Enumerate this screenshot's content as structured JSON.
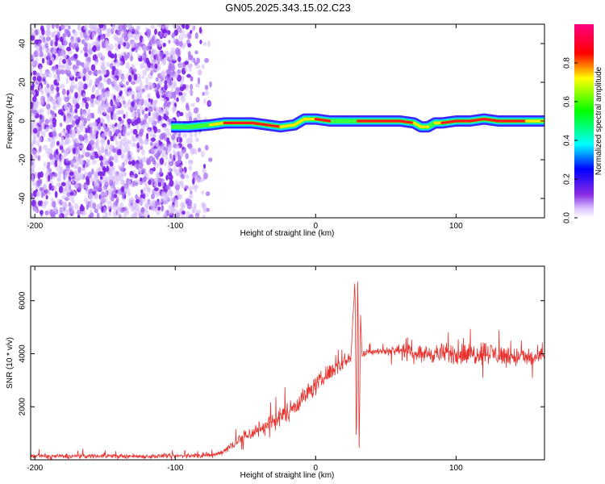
{
  "title": "GN05.2025.343.15.02.C23",
  "chart_data": [
    {
      "type": "heatmap",
      "xlabel": "Height of straight line (km)",
      "ylabel": "Frequency (Hz)",
      "xlim": [
        -203,
        163
      ],
      "ylim": [
        -50,
        50
      ],
      "x_ticks": [
        -200,
        -100,
        0,
        100
      ],
      "y_ticks": [
        -40,
        -20,
        0,
        20,
        40
      ],
      "colorbar": {
        "label": "Normalized spectral amplitude",
        "range": [
          0,
          1
        ],
        "ticks": [
          "0.0",
          "0.2",
          "0.4",
          "0.6",
          "0.8"
        ],
        "colors": [
          "#ffffff",
          "#c9a6ff",
          "#8a2be2",
          "#0000ff",
          "#00ffff",
          "#00ff00",
          "#ffff00",
          "#ff0000",
          "#ff0080"
        ]
      },
      "noise_region_x": [
        -203,
        -72
      ],
      "signal_track": {
        "x": [
          -103,
          -90,
          -75,
          -65,
          -55,
          -45,
          -35,
          -25,
          -15,
          -8,
          0,
          10,
          20,
          30,
          40,
          50,
          60,
          70,
          75,
          80,
          85,
          90,
          100,
          110,
          120,
          130,
          140,
          150,
          163
        ],
        "freq": [
          -3,
          -3,
          -2,
          -1,
          -1,
          -1,
          -2,
          -3,
          -2,
          1,
          1,
          0,
          0,
          0,
          0,
          0,
          0,
          -1,
          -3,
          -3,
          -1,
          -1,
          0,
          0,
          1,
          0,
          0,
          0,
          0
        ],
        "amplitude": [
          0.3,
          0.45,
          0.55,
          0.95,
          0.95,
          0.95,
          0.9,
          0.85,
          0.7,
          0.85,
          0.8,
          0.9,
          0.5,
          0.85,
          0.95,
          0.95,
          0.95,
          0.8,
          0.7,
          0.8,
          0.6,
          0.95,
          0.85,
          0.9,
          0.8,
          0.9,
          0.95,
          0.9,
          0.7
        ]
      }
    },
    {
      "type": "line",
      "xlabel": "Height of straight line (km)",
      "ylabel": "SNR (10 * v/v)",
      "xlim": [
        -203,
        163
      ],
      "ylim": [
        0,
        7300
      ],
      "x_ticks": [
        -200,
        -100,
        0,
        100
      ],
      "y_ticks": [
        2000,
        4000,
        6000
      ],
      "color": "#e8322e",
      "series": [
        {
          "x": [
            -203,
            -180,
            -150,
            -120,
            -90,
            -75,
            -70,
            -65,
            -60,
            -55,
            -50,
            -40,
            -30,
            -20,
            -10,
            0,
            10,
            20,
            25,
            28,
            29,
            30,
            31,
            32,
            33,
            35,
            40,
            50,
            60,
            70,
            80,
            90,
            100,
            110,
            120,
            130,
            140,
            150,
            163
          ],
          "y": [
            150,
            130,
            150,
            130,
            150,
            160,
            220,
            350,
            550,
            750,
            900,
            1150,
            1450,
            1800,
            2300,
            2800,
            3300,
            3700,
            3850,
            6800,
            200,
            7200,
            300,
            5500,
            3900,
            4000,
            4100,
            4100,
            4150,
            4050,
            4000,
            4000,
            4000,
            3950,
            4100,
            3950,
            3900,
            3850,
            3850
          ],
          "noise": [
            80,
            80,
            80,
            80,
            80,
            80,
            80,
            120,
            180,
            230,
            260,
            300,
            330,
            350,
            350,
            330,
            300,
            260,
            230,
            0,
            0,
            0,
            0,
            0,
            150,
            140,
            130,
            140,
            180,
            240,
            300,
            350,
            380,
            400,
            400,
            380,
            360,
            330,
            320
          ]
        }
      ]
    }
  ]
}
